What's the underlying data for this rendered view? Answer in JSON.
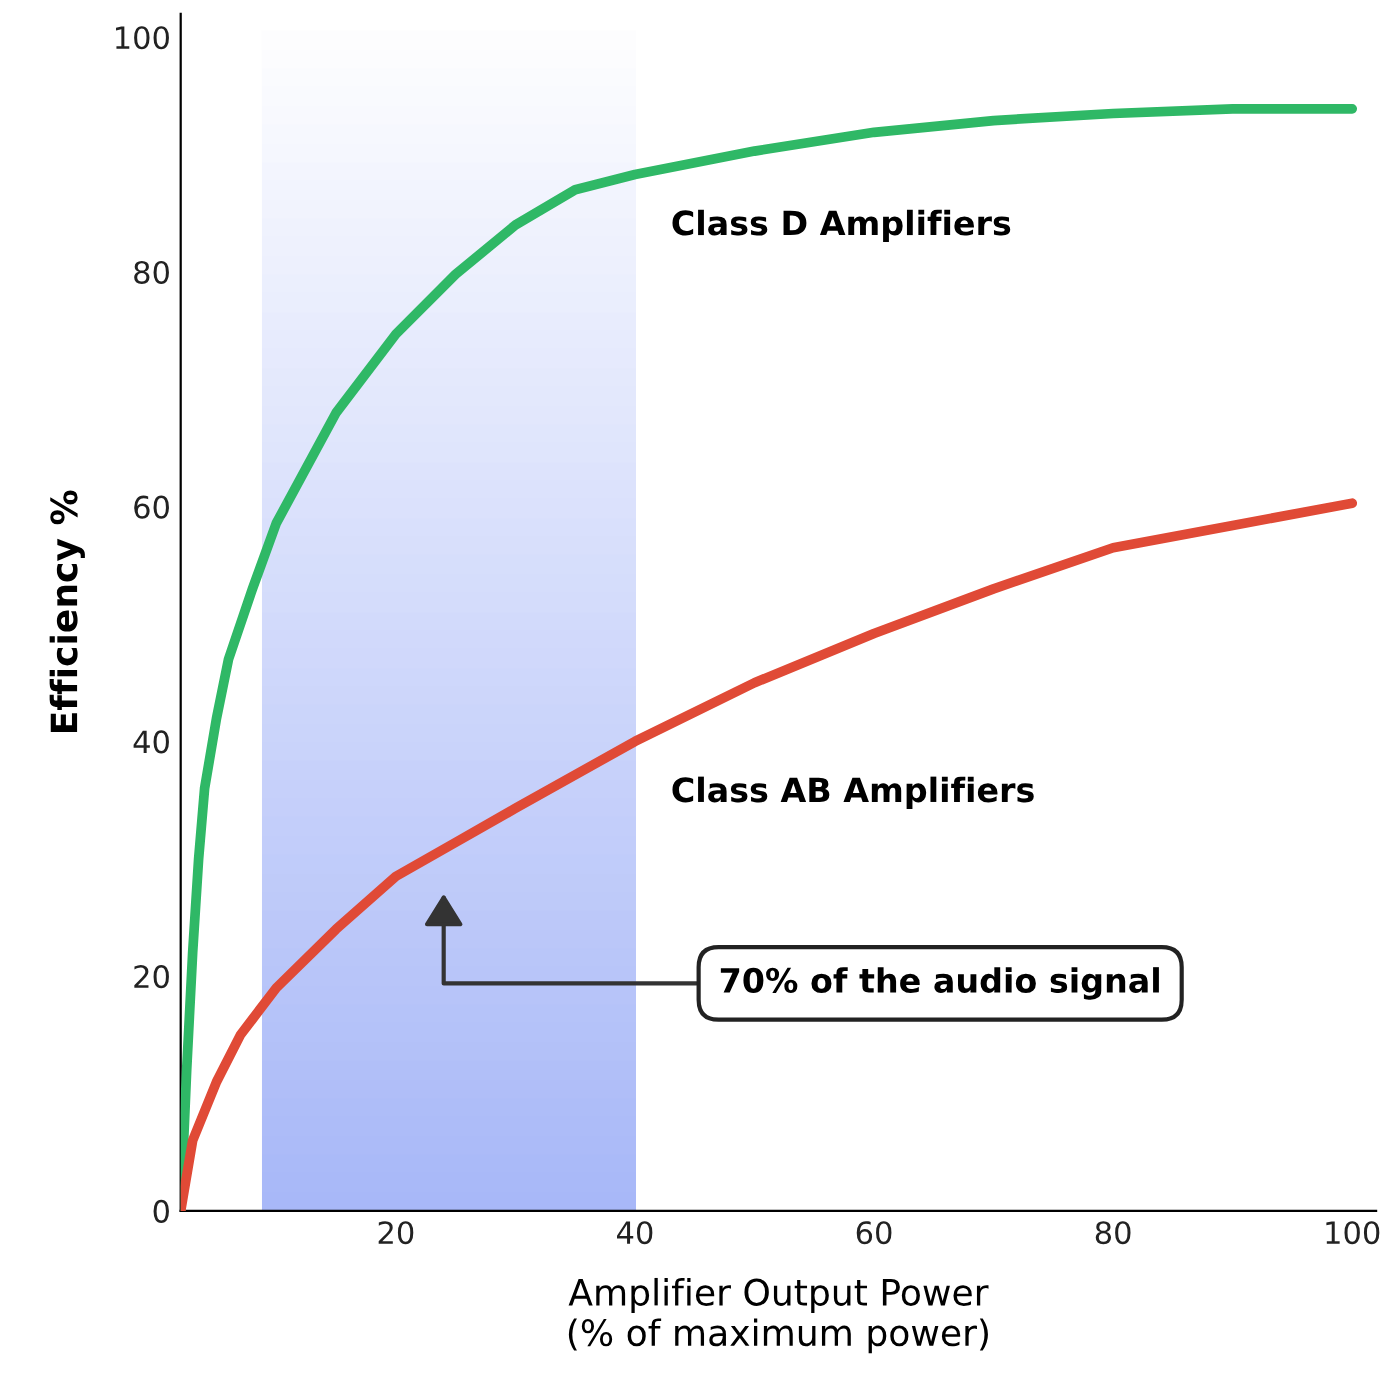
{
  "chart_data": {
    "type": "line",
    "xlabel": "Amplifier Output Power\n(% of maximum power)",
    "ylabel": "Efficiency %",
    "xlim": [
      2,
      102
    ],
    "ylim": [
      0,
      102
    ],
    "xticks": [
      20,
      40,
      60,
      80,
      100
    ],
    "yticks": [
      0,
      20,
      40,
      60,
      80,
      100
    ],
    "grid": false,
    "legend": false,
    "marker": "none",
    "line_style": "solid",
    "series": [
      {
        "name": "Class D Amplifiers",
        "color": "#2fb866",
        "x": [
          2,
          2.5,
          3,
          3.5,
          4,
          5,
          6,
          8,
          10,
          15,
          20,
          25,
          30,
          35,
          40,
          50,
          60,
          70,
          80,
          90,
          100
        ],
        "values": [
          0,
          12,
          22,
          30,
          36,
          42,
          47,
          53,
          58.6,
          68,
          74.7,
          79.8,
          84,
          87,
          88.3,
          90.3,
          91.9,
          92.9,
          93.5,
          93.9,
          93.9
        ]
      },
      {
        "name": "Class AB Amplifiers",
        "color": "#e04a36",
        "x": [
          2,
          3,
          5,
          7,
          10,
          15,
          20,
          25,
          30,
          40,
          50,
          60,
          70,
          80,
          90,
          100
        ],
        "values": [
          0,
          6,
          11,
          15,
          19,
          24,
          28.5,
          31.4,
          34.3,
          40,
          45,
          49.2,
          53,
          56.5,
          58.4,
          60.3
        ]
      }
    ],
    "bands": [
      {
        "axis": "x",
        "from": 8.8,
        "to": 40,
        "color": "#a8b8f8"
      }
    ],
    "annotations": [
      "70% of the audio signal"
    ]
  }
}
